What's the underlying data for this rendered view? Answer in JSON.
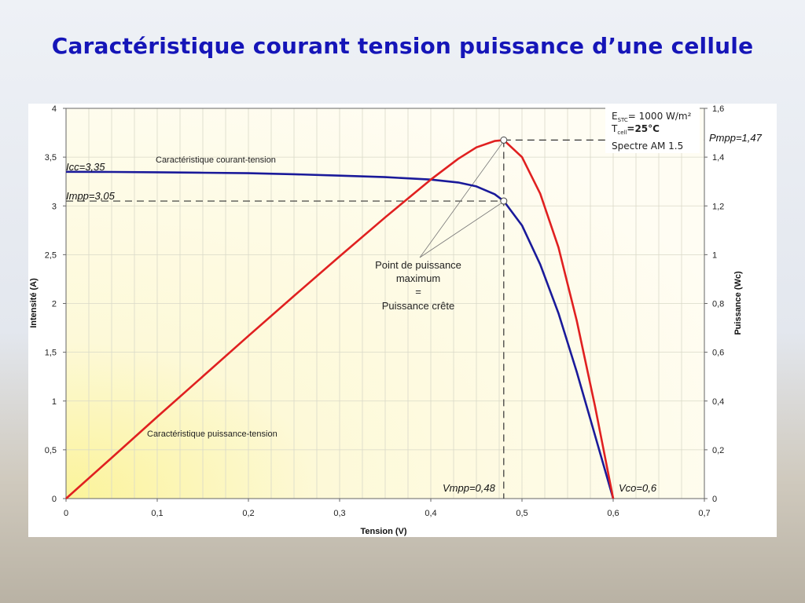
{
  "slide": {
    "title": "Caractéristique courant tension puissance d’une cellule"
  },
  "colors": {
    "title": "#1515b8",
    "current_curve": "#1a1a9a",
    "power_curve": "#e02020",
    "background_glow": "#fbf6c4"
  },
  "chart_data": {
    "type": "line",
    "xlabel": "Tension (V)",
    "ylabel": "Intensité (A)",
    "y2label": "Puissance (Wc)",
    "xlim": [
      0,
      0.7
    ],
    "ylim": [
      0,
      4
    ],
    "y2lim": [
      0,
      1.6
    ],
    "x_ticks": [
      "0",
      "0,1",
      "0,2",
      "0,3",
      "0,4",
      "0,5",
      "0,6",
      "0,7"
    ],
    "y_ticks": [
      "0",
      "0,5",
      "1",
      "1,5",
      "2",
      "2,5",
      "3",
      "3,5",
      "4"
    ],
    "y2_ticks": [
      "0",
      "0,2",
      "0,4",
      "0,6",
      "0,8",
      "1",
      "1,2",
      "1,4",
      "1,6"
    ],
    "grid": true,
    "series": [
      {
        "name": "Caractéristique  courant-tension",
        "axis": "left",
        "color": "#1a1a9a",
        "x": [
          0,
          0.05,
          0.1,
          0.15,
          0.2,
          0.25,
          0.3,
          0.35,
          0.4,
          0.43,
          0.45,
          0.47,
          0.48,
          0.5,
          0.52,
          0.54,
          0.56,
          0.58,
          0.6
        ],
        "y": [
          3.35,
          3.348,
          3.345,
          3.34,
          3.335,
          3.325,
          3.31,
          3.295,
          3.27,
          3.24,
          3.2,
          3.12,
          3.05,
          2.8,
          2.4,
          1.9,
          1.3,
          0.65,
          0
        ]
      },
      {
        "name": "Caractéristique  puissance-tension",
        "axis": "right",
        "color": "#e02020",
        "x": [
          0,
          0.05,
          0.1,
          0.15,
          0.2,
          0.25,
          0.3,
          0.35,
          0.4,
          0.43,
          0.45,
          0.47,
          0.48,
          0.5,
          0.52,
          0.54,
          0.56,
          0.58,
          0.6
        ],
        "y": [
          0,
          0.167,
          0.335,
          0.501,
          0.667,
          0.831,
          0.993,
          1.153,
          1.308,
          1.393,
          1.44,
          1.466,
          1.47,
          1.4,
          1.25,
          1.03,
          0.73,
          0.38,
          0
        ]
      }
    ],
    "annotations": {
      "icc": {
        "label": "Icc=3,35",
        "y": 3.35
      },
      "impp": {
        "label": "Impp=3,05",
        "y": 3.05
      },
      "pmpp": {
        "label": "Pmpp=1,47",
        "y2": 1.47
      },
      "vmpp": {
        "label": "Vmpp=0,48",
        "x": 0.48
      },
      "vco": {
        "label": "Vco=0,6",
        "x": 0.6
      },
      "mpp_text": [
        "Point de puissance",
        "maximum",
        "=",
        "Puissance crête"
      ]
    },
    "conditions": {
      "e_prefix": "E",
      "e_sub": "STC",
      "e_value": "= 1000 W/m²",
      "t_prefix": "T",
      "t_sub": "cell",
      "t_value": "=25°C",
      "spectrum": "Spectre AM 1.5"
    }
  }
}
